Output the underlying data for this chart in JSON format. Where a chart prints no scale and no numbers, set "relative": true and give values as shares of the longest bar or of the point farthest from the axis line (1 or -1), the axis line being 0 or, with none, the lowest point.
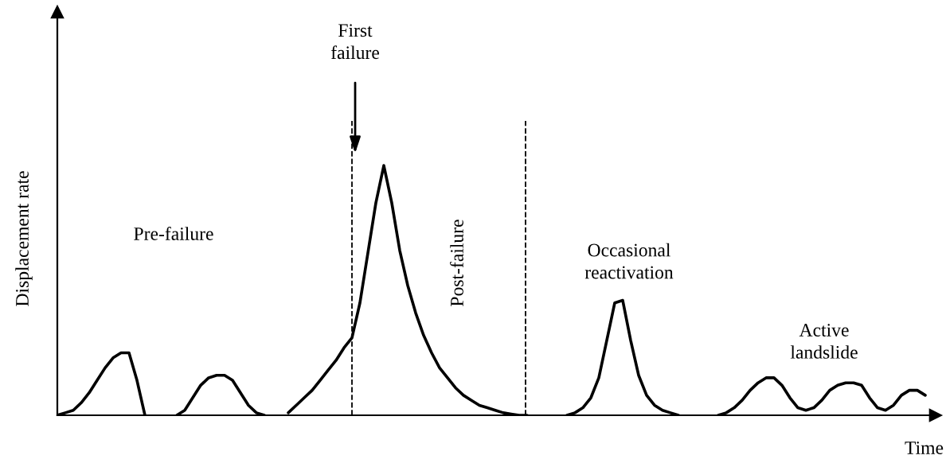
{
  "chart_data": {
    "type": "line",
    "relative": true,
    "xlabel": "Time",
    "ylabel": "Displacement rate",
    "categories": [
      null,
      null,
      null,
      null,
      null,
      null,
      null,
      null,
      null,
      null,
      null,
      null,
      null,
      null,
      null,
      null,
      null,
      null,
      null,
      null,
      null,
      null,
      null,
      null,
      null,
      null,
      null,
      null,
      null,
      null,
      null,
      null,
      null,
      null,
      null,
      null,
      null,
      null,
      null,
      null,
      null,
      null,
      null,
      null,
      null,
      null,
      null,
      null,
      null,
      null,
      null,
      null,
      null,
      null,
      null,
      null,
      null,
      null,
      null,
      null,
      null,
      null,
      null,
      null,
      null,
      null,
      null,
      null,
      null,
      null,
      null,
      null,
      null,
      null,
      null,
      null,
      null,
      null,
      null,
      null,
      null,
      null,
      null,
      null,
      null,
      null,
      null,
      null,
      null,
      null,
      null,
      null,
      null,
      null,
      null,
      null,
      null,
      null,
      null,
      null,
      null,
      null,
      null,
      null,
      null,
      null,
      null,
      null,
      null,
      null
    ],
    "series": [
      {
        "color": "#000000",
        "values": [
          0,
          0.01,
          0.02,
          0.05,
          0.09,
          0.14,
          0.19,
          0.23,
          0.25,
          0.25,
          0.14,
          0,
          null,
          null,
          null,
          null,
          null,
          null,
          null,
          null,
          null,
          null,
          null,
          null,
          null,
          null,
          null,
          null,
          null,
          null,
          null,
          null,
          null,
          null,
          null,
          null,
          null,
          null,
          null,
          null,
          null,
          null,
          null,
          null,
          null,
          null,
          null,
          null,
          null,
          null,
          null,
          null,
          null,
          null,
          null,
          null,
          null,
          null,
          null,
          null,
          null,
          null,
          null,
          null,
          null,
          null,
          null,
          null,
          null,
          null,
          null,
          null,
          null,
          null,
          null,
          null,
          null,
          null,
          null,
          null,
          null,
          null,
          null,
          null,
          null,
          null,
          null,
          null,
          null,
          null,
          null,
          null,
          null,
          null,
          null,
          null,
          null,
          null,
          null,
          null,
          null,
          null,
          null,
          null,
          null,
          null,
          null,
          null,
          null,
          null
        ]
      },
      {
        "color": "#000000",
        "values": [
          null,
          null,
          null,
          null,
          null,
          null,
          null,
          null,
          null,
          null,
          null,
          null,
          null,
          null,
          null,
          0,
          0.02,
          0.07,
          0.12,
          0.15,
          0.16,
          0.16,
          0.14,
          0.09,
          0.04,
          0.01,
          0,
          null,
          null,
          null,
          null,
          null,
          null,
          null,
          null,
          null,
          null,
          null,
          null,
          null,
          null,
          null,
          null,
          null,
          null,
          null,
          null,
          null,
          null,
          null,
          null,
          null,
          null,
          null,
          null,
          null,
          null,
          null,
          null,
          null,
          null,
          null,
          null,
          null,
          null,
          null,
          null,
          null,
          null,
          null,
          null,
          null,
          null,
          null,
          null,
          null,
          null,
          null,
          null,
          null,
          null,
          null,
          null,
          null,
          null,
          null,
          null,
          null,
          null,
          null,
          null,
          null,
          null,
          null,
          null,
          null,
          null,
          null,
          null,
          null,
          null,
          null,
          null,
          null,
          null,
          null,
          null,
          null,
          null,
          null
        ]
      },
      {
        "color": "#000000",
        "values": [
          null,
          null,
          null,
          null,
          null,
          null,
          null,
          null,
          null,
          null,
          null,
          null,
          null,
          null,
          null,
          null,
          null,
          null,
          null,
          null,
          null,
          null,
          null,
          null,
          null,
          null,
          null,
          null,
          null,
          0.01,
          0.04,
          0.07,
          0.1,
          0.14,
          0.18,
          0.22,
          0.27,
          0.31,
          0.45,
          0.65,
          0.85,
          1,
          0.85,
          0.66,
          0.52,
          0.41,
          0.32,
          0.25,
          0.19,
          0.15,
          0.11,
          0.08,
          0.06,
          0.04,
          0.03,
          0.02,
          0.01,
          0.005,
          0,
          0,
          null,
          null,
          null,
          null,
          null,
          null,
          null,
          null,
          null,
          null,
          null,
          null,
          null,
          null,
          null,
          null,
          null,
          null,
          null,
          null,
          null,
          null,
          null,
          null,
          null,
          null,
          null,
          null,
          null,
          null,
          null,
          null,
          null,
          null,
          null,
          null,
          null,
          null,
          null,
          null,
          null,
          null,
          null,
          null,
          null,
          null,
          null,
          null,
          null,
          null
        ]
      },
      {
        "color": "#000000",
        "values": [
          null,
          null,
          null,
          null,
          null,
          null,
          null,
          null,
          null,
          null,
          null,
          null,
          null,
          null,
          null,
          null,
          null,
          null,
          null,
          null,
          null,
          null,
          null,
          null,
          null,
          null,
          null,
          null,
          null,
          null,
          null,
          null,
          null,
          null,
          null,
          null,
          null,
          null,
          null,
          null,
          null,
          null,
          null,
          null,
          null,
          null,
          null,
          null,
          null,
          null,
          null,
          null,
          null,
          null,
          null,
          null,
          null,
          null,
          null,
          null,
          null,
          null,
          null,
          null,
          0,
          0.01,
          0.03,
          0.07,
          0.15,
          0.3,
          0.45,
          0.46,
          0.3,
          0.16,
          0.08,
          0.04,
          0.02,
          0.01,
          0,
          null,
          null,
          null,
          null,
          null,
          null,
          null,
          null,
          null,
          null,
          null,
          null,
          null,
          null,
          null,
          null,
          null,
          null,
          null,
          null,
          null,
          null,
          null,
          null,
          null,
          null,
          null,
          null,
          null,
          null,
          null
        ]
      },
      {
        "color": "#000000",
        "values": [
          null,
          null,
          null,
          null,
          null,
          null,
          null,
          null,
          null,
          null,
          null,
          null,
          null,
          null,
          null,
          null,
          null,
          null,
          null,
          null,
          null,
          null,
          null,
          null,
          null,
          null,
          null,
          null,
          null,
          null,
          null,
          null,
          null,
          null,
          null,
          null,
          null,
          null,
          null,
          null,
          null,
          null,
          null,
          null,
          null,
          null,
          null,
          null,
          null,
          null,
          null,
          null,
          null,
          null,
          null,
          null,
          null,
          null,
          null,
          null,
          null,
          null,
          null,
          null,
          null,
          null,
          null,
          null,
          null,
          null,
          null,
          null,
          null,
          null,
          null,
          null,
          null,
          null,
          null,
          null,
          null,
          null,
          null,
          0,
          0.01,
          0.03,
          0.06,
          0.1,
          0.13,
          0.15,
          0.15,
          0.12,
          0.07,
          0.03,
          0.02,
          0.03,
          0.06,
          0.1,
          0.12,
          0.13,
          0.13,
          0.12,
          0.07,
          0.03,
          0.02,
          0.04,
          0.08,
          0.1,
          0.1,
          0.08
        ]
      }
    ],
    "annotations": [
      "Pre-failure",
      "First\nfailure",
      "Post-failure",
      "Occasional\nreactivation",
      "Active\nlandslide"
    ],
    "grid": false,
    "legend": false,
    "marker": "none",
    "line_style": "solid"
  }
}
